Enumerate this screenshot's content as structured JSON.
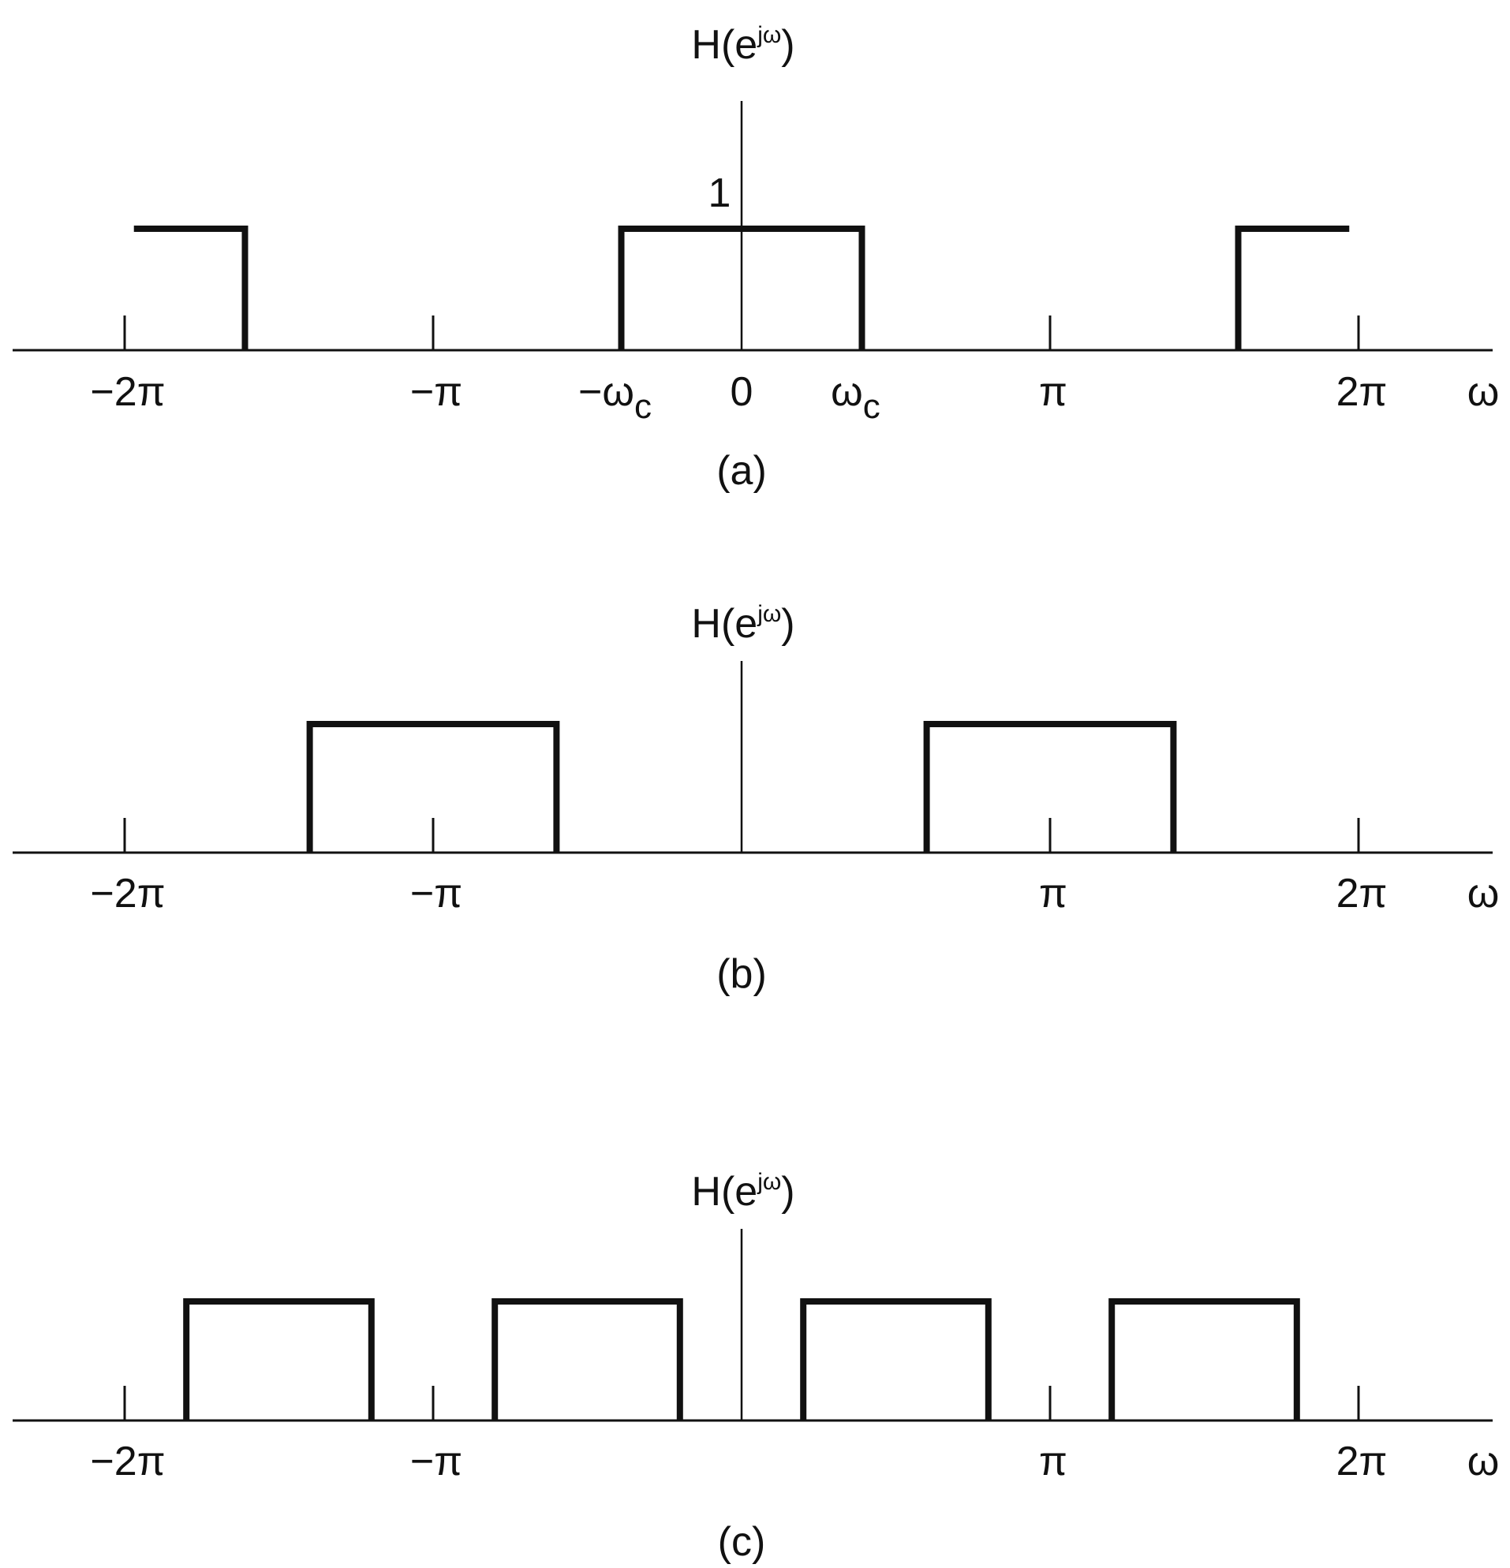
{
  "figure": {
    "panels": [
      {
        "id": "a",
        "caption": "(a)",
        "ylabel_main": "H(e",
        "ylabel_sup": "jω",
        "ylabel_close": ")",
        "one_label": "1",
        "xlabel": "ω",
        "ticks": [
          {
            "value": -2,
            "label": "−2π"
          },
          {
            "value": -1,
            "label": "−π"
          },
          {
            "value": 1,
            "label": "π"
          },
          {
            "value": 2,
            "label": "2π"
          }
        ],
        "extra_labels": [
          {
            "value": -0.39,
            "label": "−ω",
            "sub": "c"
          },
          {
            "value": 0,
            "label": "0",
            "sub": ""
          },
          {
            "value": 0.39,
            "label": "ω",
            "sub": "c"
          }
        ],
        "passbands": [
          {
            "from": -1.97,
            "to": -1.61
          },
          {
            "from": -0.39,
            "to": 0.39
          },
          {
            "from": 1.61,
            "to": 1.97
          }
        ]
      },
      {
        "id": "b",
        "caption": "(b)",
        "ylabel_main": "H(e",
        "ylabel_sup": "jω",
        "ylabel_close": ")",
        "xlabel": "ω",
        "ticks": [
          {
            "value": -2,
            "label": "−2π"
          },
          {
            "value": -1,
            "label": "−π"
          },
          {
            "value": 1,
            "label": "π"
          },
          {
            "value": 2,
            "label": "2π"
          }
        ],
        "passbands": [
          {
            "from": -1.4,
            "to": -0.6
          },
          {
            "from": 0.6,
            "to": 1.4
          }
        ]
      },
      {
        "id": "c",
        "caption": "(c)",
        "ylabel_main": "H(e",
        "ylabel_sup": "jω",
        "ylabel_close": ")",
        "xlabel": "ω",
        "ticks": [
          {
            "value": -2,
            "label": "−2π"
          },
          {
            "value": -1,
            "label": "−π"
          },
          {
            "value": 1,
            "label": "π"
          },
          {
            "value": 2,
            "label": "2π"
          }
        ],
        "passbands": [
          {
            "from": -1.8,
            "to": -1.2
          },
          {
            "from": -0.8,
            "to": -0.2
          },
          {
            "from": 0.2,
            "to": 0.8
          },
          {
            "from": 1.2,
            "to": 1.8
          }
        ]
      }
    ]
  }
}
